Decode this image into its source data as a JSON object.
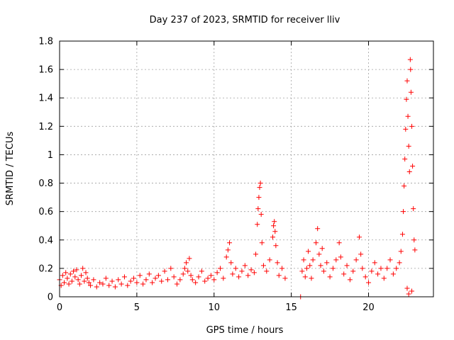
{
  "chart_data": {
    "type": "scatter",
    "title": "Day 237 of 2023, SRMTID for receiver lliv",
    "xlabel": "GPS time / hours",
    "ylabel": "SRMTID / TECUs",
    "xlim": [
      0,
      24.2
    ],
    "ylim": [
      0,
      1.8
    ],
    "xticks": [
      0,
      5,
      10,
      15,
      20
    ],
    "yticks": [
      0,
      0.2,
      0.4,
      0.6,
      0.8,
      1,
      1.2,
      1.4,
      1.6,
      1.8
    ],
    "ytick_labels": [
      "0",
      "0.2",
      "0.4",
      "0.6",
      "0.8",
      "1",
      "1.2",
      "1.4",
      "1.6",
      "1.8"
    ],
    "grid": true,
    "marker": "+",
    "series": [
      {
        "name": "SRMTID",
        "color": "#ff0000",
        "points": [
          [
            0.0,
            0.12
          ],
          [
            0.1,
            0.08
          ],
          [
            0.2,
            0.15
          ],
          [
            0.3,
            0.1
          ],
          [
            0.4,
            0.17
          ],
          [
            0.5,
            0.13
          ],
          [
            0.6,
            0.09
          ],
          [
            0.7,
            0.16
          ],
          [
            0.8,
            0.11
          ],
          [
            0.9,
            0.18
          ],
          [
            1.0,
            0.14
          ],
          [
            1.1,
            0.19
          ],
          [
            1.2,
            0.12
          ],
          [
            1.3,
            0.09
          ],
          [
            1.4,
            0.15
          ],
          [
            1.5,
            0.2
          ],
          [
            1.6,
            0.11
          ],
          [
            1.7,
            0.17
          ],
          [
            1.8,
            0.13
          ],
          [
            1.9,
            0.1
          ],
          [
            2.0,
            0.08
          ],
          [
            2.2,
            0.12
          ],
          [
            2.4,
            0.07
          ],
          [
            2.6,
            0.1
          ],
          [
            2.8,
            0.09
          ],
          [
            3.0,
            0.13
          ],
          [
            3.2,
            0.08
          ],
          [
            3.4,
            0.11
          ],
          [
            3.6,
            0.07
          ],
          [
            3.8,
            0.12
          ],
          [
            4.0,
            0.09
          ],
          [
            4.2,
            0.14
          ],
          [
            4.4,
            0.08
          ],
          [
            4.6,
            0.11
          ],
          [
            4.8,
            0.13
          ],
          [
            5.0,
            0.1
          ],
          [
            5.2,
            0.15
          ],
          [
            5.4,
            0.09
          ],
          [
            5.6,
            0.12
          ],
          [
            5.8,
            0.16
          ],
          [
            6.0,
            0.1
          ],
          [
            6.2,
            0.13
          ],
          [
            6.4,
            0.15
          ],
          [
            6.6,
            0.11
          ],
          [
            6.8,
            0.18
          ],
          [
            7.0,
            0.12
          ],
          [
            7.2,
            0.2
          ],
          [
            7.4,
            0.14
          ],
          [
            7.6,
            0.09
          ],
          [
            7.8,
            0.12
          ],
          [
            8.0,
            0.16
          ],
          [
            8.1,
            0.2
          ],
          [
            8.2,
            0.24
          ],
          [
            8.3,
            0.18
          ],
          [
            8.4,
            0.27
          ],
          [
            8.5,
            0.15
          ],
          [
            8.6,
            0.12
          ],
          [
            8.8,
            0.1
          ],
          [
            9.0,
            0.14
          ],
          [
            9.2,
            0.18
          ],
          [
            9.4,
            0.11
          ],
          [
            9.6,
            0.13
          ],
          [
            9.8,
            0.15
          ],
          [
            10.0,
            0.12
          ],
          [
            10.2,
            0.17
          ],
          [
            10.4,
            0.2
          ],
          [
            10.6,
            0.13
          ],
          [
            10.8,
            0.28
          ],
          [
            10.9,
            0.33
          ],
          [
            11.0,
            0.38
          ],
          [
            11.1,
            0.24
          ],
          [
            11.2,
            0.16
          ],
          [
            11.4,
            0.2
          ],
          [
            11.6,
            0.14
          ],
          [
            11.8,
            0.18
          ],
          [
            12.0,
            0.22
          ],
          [
            12.2,
            0.15
          ],
          [
            12.4,
            0.19
          ],
          [
            12.6,
            0.17
          ],
          [
            12.7,
            0.3
          ],
          [
            12.8,
            0.51
          ],
          [
            12.85,
            0.62
          ],
          [
            12.9,
            0.7
          ],
          [
            12.95,
            0.77
          ],
          [
            13.0,
            0.8
          ],
          [
            13.05,
            0.58
          ],
          [
            13.1,
            0.38
          ],
          [
            13.2,
            0.22
          ],
          [
            13.4,
            0.18
          ],
          [
            13.6,
            0.26
          ],
          [
            13.8,
            0.42
          ],
          [
            13.85,
            0.5
          ],
          [
            13.9,
            0.53
          ],
          [
            13.95,
            0.46
          ],
          [
            14.0,
            0.36
          ],
          [
            14.1,
            0.24
          ],
          [
            14.2,
            0.15
          ],
          [
            14.4,
            0.2
          ],
          [
            14.6,
            0.13
          ],
          [
            15.6,
            0.0
          ],
          [
            15.7,
            0.18
          ],
          [
            15.8,
            0.26
          ],
          [
            15.9,
            0.14
          ],
          [
            16.0,
            0.2
          ],
          [
            16.1,
            0.32
          ],
          [
            16.2,
            0.22
          ],
          [
            16.3,
            0.13
          ],
          [
            16.4,
            0.26
          ],
          [
            16.6,
            0.38
          ],
          [
            16.7,
            0.48
          ],
          [
            16.8,
            0.3
          ],
          [
            16.9,
            0.22
          ],
          [
            17.0,
            0.34
          ],
          [
            17.1,
            0.18
          ],
          [
            17.3,
            0.24
          ],
          [
            17.5,
            0.14
          ],
          [
            17.7,
            0.2
          ],
          [
            17.9,
            0.26
          ],
          [
            18.1,
            0.38
          ],
          [
            18.2,
            0.28
          ],
          [
            18.4,
            0.16
          ],
          [
            18.6,
            0.22
          ],
          [
            18.8,
            0.12
          ],
          [
            19.0,
            0.18
          ],
          [
            19.2,
            0.26
          ],
          [
            19.4,
            0.42
          ],
          [
            19.5,
            0.3
          ],
          [
            19.6,
            0.2
          ],
          [
            19.8,
            0.14
          ],
          [
            20.0,
            0.1
          ],
          [
            20.2,
            0.18
          ],
          [
            20.4,
            0.24
          ],
          [
            20.6,
            0.16
          ],
          [
            20.8,
            0.2
          ],
          [
            21.0,
            0.13
          ],
          [
            21.2,
            0.2
          ],
          [
            21.4,
            0.26
          ],
          [
            21.6,
            0.16
          ],
          [
            21.8,
            0.2
          ],
          [
            22.0,
            0.24
          ],
          [
            22.1,
            0.32
          ],
          [
            22.2,
            0.44
          ],
          [
            22.25,
            0.6
          ],
          [
            22.3,
            0.78
          ],
          [
            22.35,
            0.97
          ],
          [
            22.4,
            1.18
          ],
          [
            22.45,
            1.39
          ],
          [
            22.5,
            1.52
          ],
          [
            22.55,
            1.27
          ],
          [
            22.6,
            1.06
          ],
          [
            22.65,
            0.88
          ],
          [
            22.7,
            1.67
          ],
          [
            22.72,
            1.6
          ],
          [
            22.75,
            1.44
          ],
          [
            22.8,
            1.2
          ],
          [
            22.85,
            0.92
          ],
          [
            22.9,
            0.62
          ],
          [
            22.95,
            0.4
          ],
          [
            23.0,
            0.33
          ],
          [
            22.6,
            0.02
          ],
          [
            22.5,
            0.06
          ],
          [
            22.8,
            0.04
          ]
        ]
      }
    ]
  }
}
